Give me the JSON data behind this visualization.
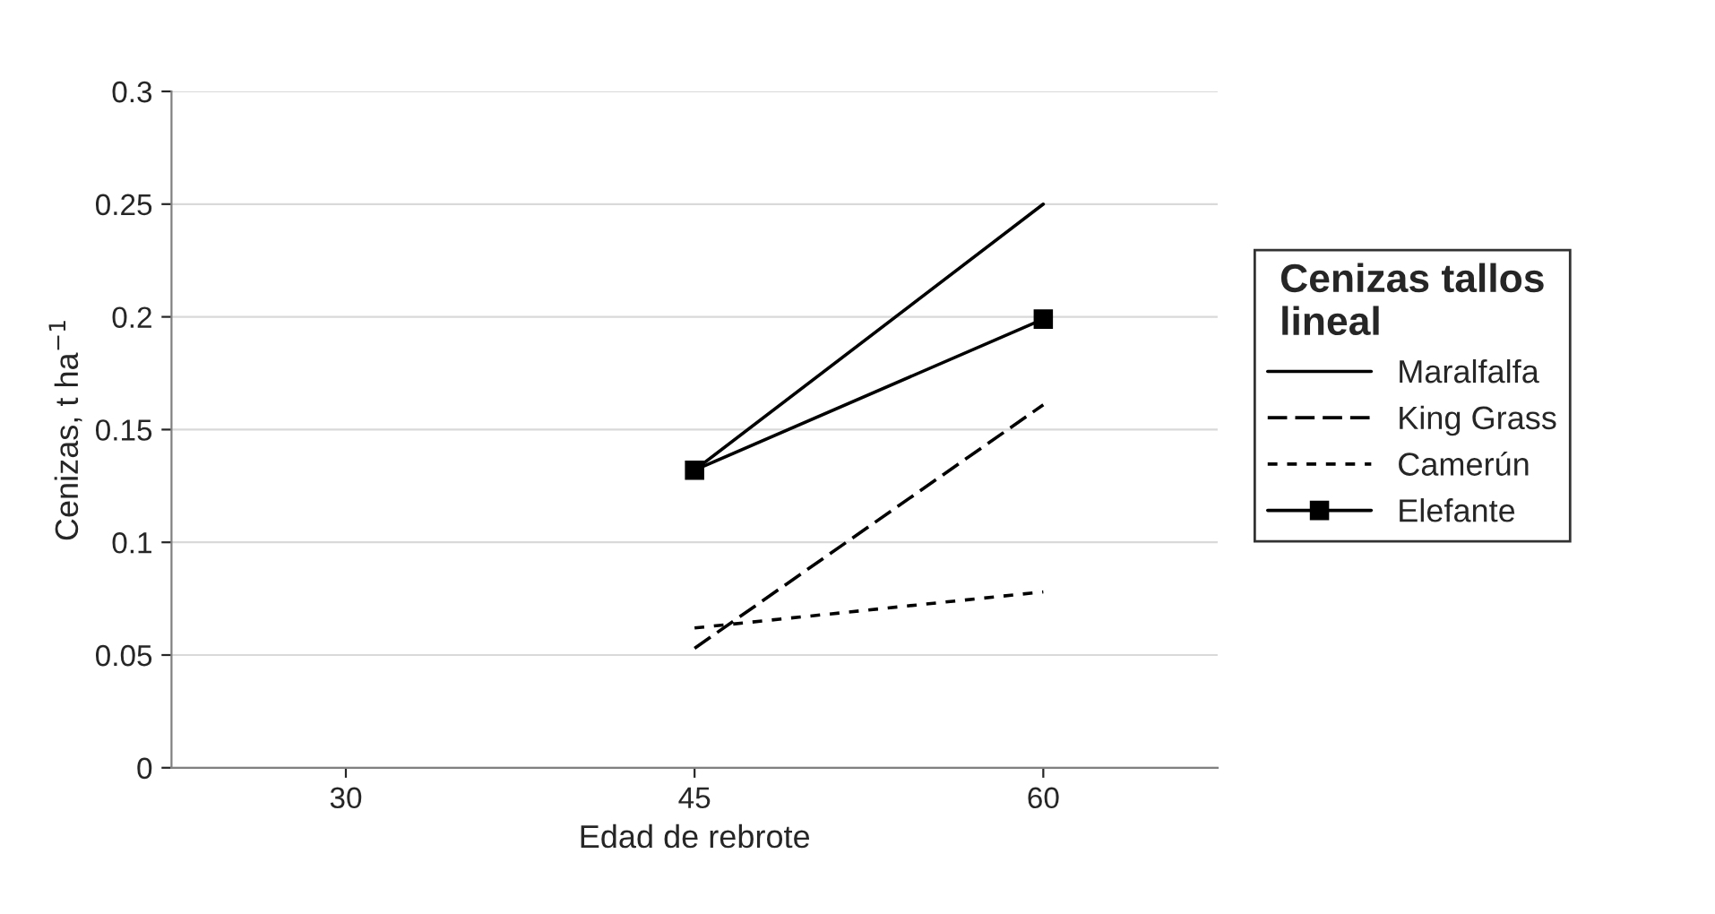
{
  "chart_data": {
    "type": "line",
    "xlabel": "Edad de rebrote",
    "ylabel": "Cenizas, t ha$^{−1}$",
    "legend_title": "Cenizas tallos lineal",
    "categories": [
      "30",
      "45",
      "60"
    ],
    "series": [
      {
        "name": "Maralfalfa",
        "color": "#000000",
        "values": [
          null,
          0.132,
          0.25
        ],
        "line_style": "solid"
      },
      {
        "name": "King Grass",
        "color": "#000000",
        "values": [
          null,
          0.053,
          0.161
        ],
        "line_style": "dashed"
      },
      {
        "name": "Camerún",
        "color": "#000000",
        "values": [
          null,
          0.062,
          0.078
        ],
        "line_style": "dotted"
      },
      {
        "name": "Elefante",
        "color": "#000000",
        "values": [
          null,
          0.132,
          0.199
        ],
        "line_style": "solid",
        "marker": "square"
      }
    ],
    "ylim": [
      0,
      0.3
    ],
    "yticks": [
      0,
      0.05,
      0.1,
      0.15,
      0.2,
      0.25,
      0.3
    ],
    "grid": "y",
    "legend": "right"
  }
}
